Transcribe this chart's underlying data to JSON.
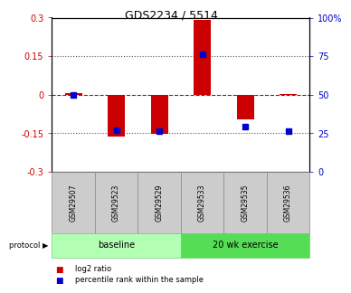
{
  "title": "GDS2234 / 5514",
  "samples": [
    "GSM29507",
    "GSM29523",
    "GSM29529",
    "GSM29533",
    "GSM29535",
    "GSM29536"
  ],
  "log2_ratio": [
    0.005,
    -0.163,
    -0.152,
    0.29,
    -0.098,
    0.003
  ],
  "percentile_rank": [
    50,
    27,
    26,
    76,
    29,
    26
  ],
  "ylim_left": [
    -0.3,
    0.3
  ],
  "ylim_right": [
    0,
    100
  ],
  "yticks_left": [
    -0.3,
    -0.15,
    0,
    0.15,
    0.3
  ],
  "yticks_right": [
    0,
    25,
    50,
    75,
    100
  ],
  "ytick_labels_right": [
    "0",
    "25",
    "50",
    "75",
    "100%"
  ],
  "bar_color": "#cc0000",
  "dot_color": "#0000cc",
  "zero_line_color": "#cc0000",
  "dotted_line_color": "#555555",
  "protocol_groups": [
    {
      "label": "baseline",
      "start": 0,
      "end": 3,
      "color": "#b3ffb3"
    },
    {
      "label": "20 wk exercise",
      "start": 3,
      "end": 6,
      "color": "#55dd55"
    }
  ],
  "legend_items": [
    {
      "label": "log2 ratio",
      "color": "#cc0000"
    },
    {
      "label": "percentile rank within the sample",
      "color": "#0000cc"
    }
  ],
  "background_color": "#ffffff",
  "bar_width": 0.4,
  "tick_fontsize": 7,
  "title_fontsize": 9,
  "sample_fontsize": 5.5,
  "protocol_fontsize": 7,
  "legend_fontsize": 6
}
